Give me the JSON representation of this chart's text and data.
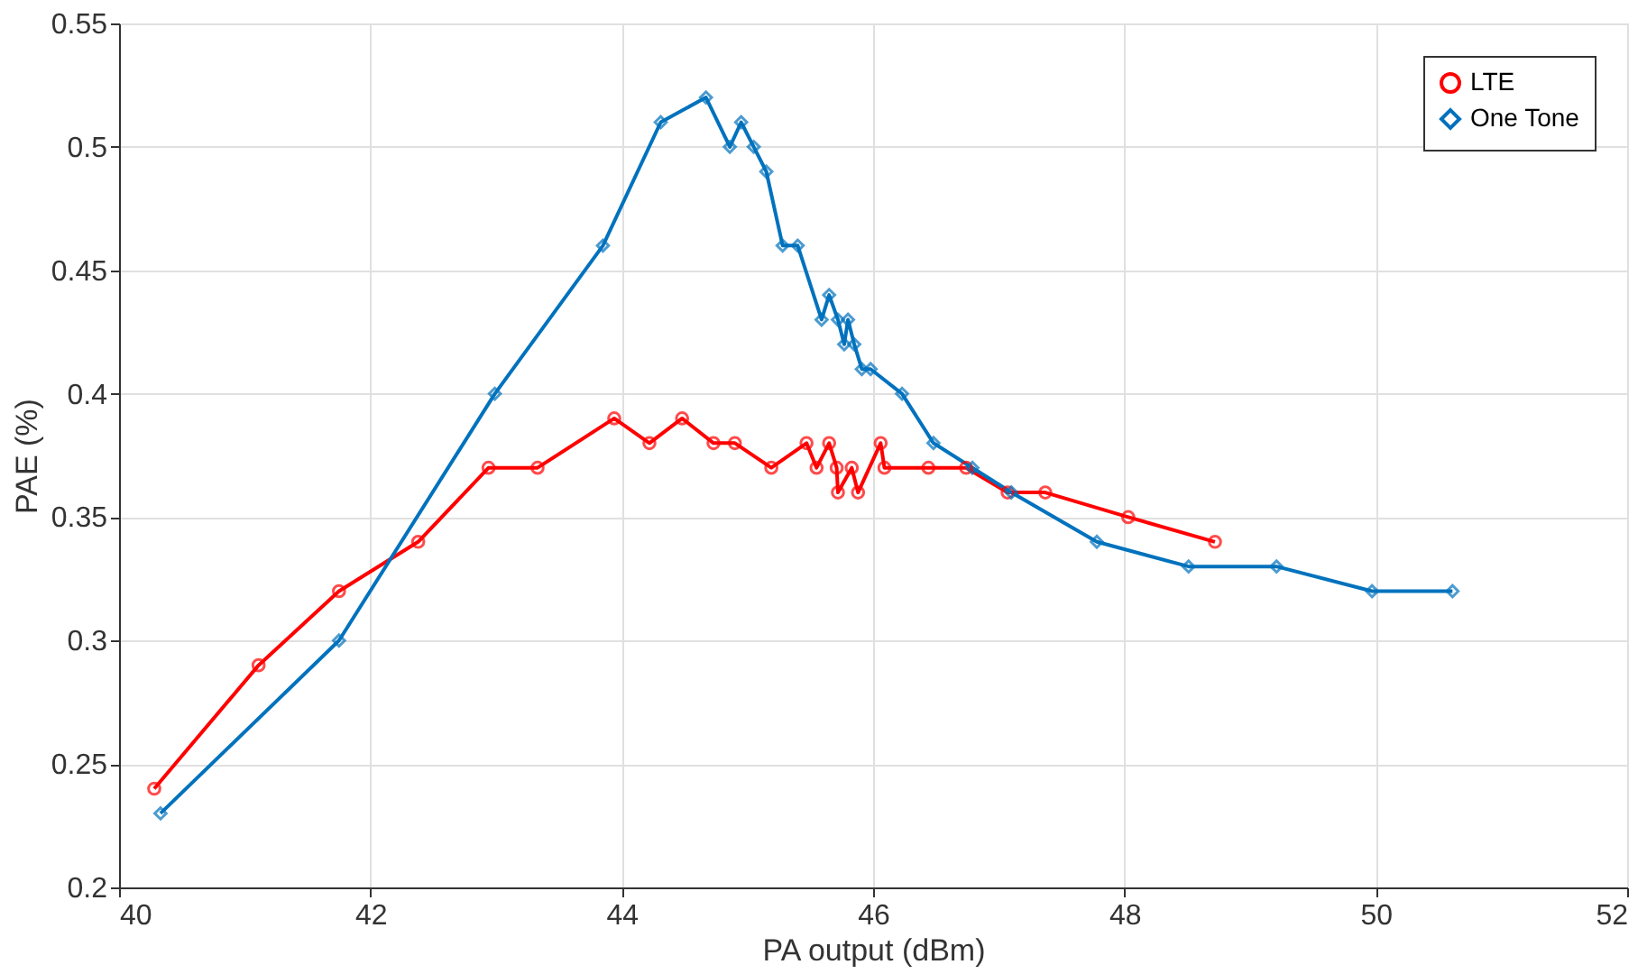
{
  "chart_data": {
    "type": "line",
    "xlabel": "PA output (dBm)",
    "ylabel": "PAE (%)",
    "xlim": [
      40,
      52
    ],
    "xticks": [
      40,
      42,
      44,
      46,
      48,
      50,
      52
    ],
    "ylim": [
      0.2,
      0.55
    ],
    "yticks": [
      0.2,
      0.25,
      0.3,
      0.35,
      0.4,
      0.45,
      0.5,
      0.55
    ],
    "grid": true,
    "legend": "top right",
    "series": [
      {
        "name": "LTE",
        "color": "#ff0000",
        "marker": "circle",
        "x": [
          40.28,
          41.11,
          41.75,
          42.38,
          42.94,
          43.33,
          43.94,
          44.22,
          44.48,
          44.73,
          44.9,
          45.19,
          45.47,
          45.55,
          45.65,
          45.71,
          45.72,
          45.83,
          45.88,
          46.06,
          46.09,
          46.44,
          46.74,
          47.07,
          47.37,
          48.03,
          48.72
        ],
        "values": [
          0.24,
          0.29,
          0.32,
          0.34,
          0.37,
          0.37,
          0.39,
          0.38,
          0.39,
          0.38,
          0.38,
          0.37,
          0.38,
          0.37,
          0.38,
          0.37,
          0.36,
          0.37,
          0.36,
          0.38,
          0.37,
          0.37,
          0.37,
          0.36,
          0.36,
          0.35,
          0.34
        ]
      },
      {
        "name": "One Tone",
        "color": "#0072bd",
        "marker": "diamond",
        "x": [
          40.33,
          41.75,
          42.99,
          43.85,
          44.31,
          44.67,
          44.86,
          44.95,
          45.05,
          45.15,
          45.28,
          45.4,
          45.59,
          45.65,
          45.72,
          45.77,
          45.8,
          45.85,
          45.91,
          45.98,
          46.23,
          46.48,
          46.79,
          47.1,
          47.78,
          48.51,
          49.21,
          49.97,
          50.61
        ],
        "values": [
          0.23,
          0.3,
          0.4,
          0.46,
          0.51,
          0.52,
          0.5,
          0.51,
          0.5,
          0.49,
          0.46,
          0.46,
          0.43,
          0.44,
          0.43,
          0.42,
          0.43,
          0.42,
          0.41,
          0.41,
          0.4,
          0.38,
          0.37,
          0.36,
          0.34,
          0.33,
          0.33,
          0.32,
          0.32
        ]
      }
    ]
  }
}
